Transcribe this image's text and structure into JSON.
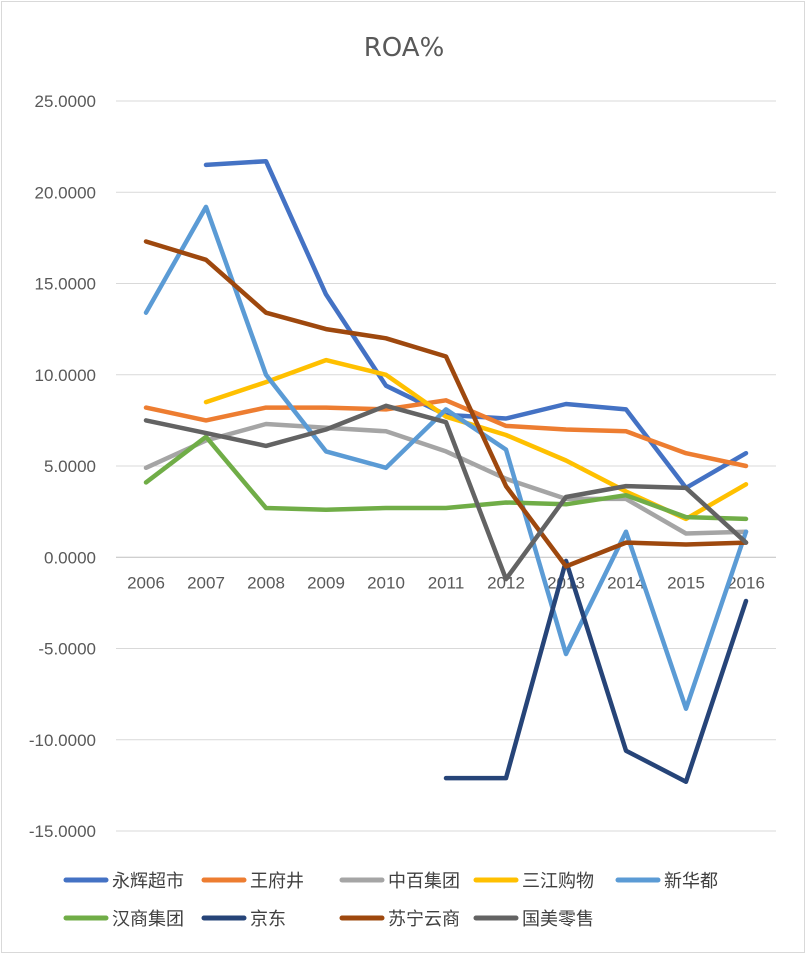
{
  "chart_data": {
    "type": "line",
    "title": "ROA%",
    "xlabel": "",
    "ylabel": "",
    "ylim": [
      -15,
      25
    ],
    "y_step": 5,
    "y_tick_labels": [
      "25.0000",
      "20.0000",
      "15.0000",
      "10.0000",
      "5.0000",
      "0.0000",
      "-5.0000",
      "-10.0000",
      "-15.0000"
    ],
    "categories": [
      "2006",
      "2007",
      "2008",
      "2009",
      "2010",
      "2011",
      "2012",
      "2013",
      "2014",
      "2015",
      "2016"
    ],
    "grid": true,
    "legend_position": "bottom",
    "series": [
      {
        "name": "永辉超市",
        "color": "#4472C4",
        "values": [
          null,
          21.5,
          21.7,
          14.4,
          9.4,
          7.8,
          7.6,
          8.4,
          8.1,
          3.8,
          5.7
        ]
      },
      {
        "name": "王府井",
        "color": "#ED7D31",
        "values": [
          8.2,
          7.5,
          8.2,
          8.2,
          8.1,
          8.6,
          7.2,
          7.0,
          6.9,
          5.7,
          5.0
        ]
      },
      {
        "name": "中百集团",
        "color": "#A5A5A5",
        "values": [
          4.9,
          6.4,
          7.3,
          7.1,
          6.9,
          5.8,
          4.3,
          3.2,
          3.2,
          1.3,
          1.4
        ]
      },
      {
        "name": "三江购物",
        "color": "#FFC000",
        "values": [
          null,
          8.5,
          9.6,
          10.8,
          10.0,
          7.7,
          6.7,
          5.3,
          3.6,
          2.1,
          4.0
        ]
      },
      {
        "name": "新华都",
        "color": "#5B9BD5",
        "values": [
          13.4,
          19.2,
          10.0,
          5.8,
          4.9,
          8.1,
          5.9,
          -5.3,
          1.4,
          -8.3,
          1.4
        ]
      },
      {
        "name": "汉商集团",
        "color": "#70AD47",
        "values": [
          4.1,
          6.6,
          2.7,
          2.6,
          2.7,
          2.7,
          3.0,
          2.9,
          3.4,
          2.2,
          2.1
        ]
      },
      {
        "name": "京东",
        "color": "#264478",
        "values": [
          null,
          null,
          null,
          null,
          null,
          -12.1,
          -12.1,
          -0.2,
          -10.6,
          -12.3,
          -2.4
        ]
      },
      {
        "name": "苏宁云商",
        "color": "#9E480E",
        "values": [
          17.3,
          16.3,
          13.4,
          12.5,
          12.0,
          11.0,
          3.9,
          -0.5,
          0.8,
          0.7,
          0.8
        ]
      },
      {
        "name": "国美零售",
        "color": "#636363",
        "values": [
          7.5,
          6.8,
          6.1,
          7.0,
          8.3,
          7.4,
          -1.2,
          3.3,
          3.9,
          3.8,
          0.8
        ]
      }
    ]
  }
}
